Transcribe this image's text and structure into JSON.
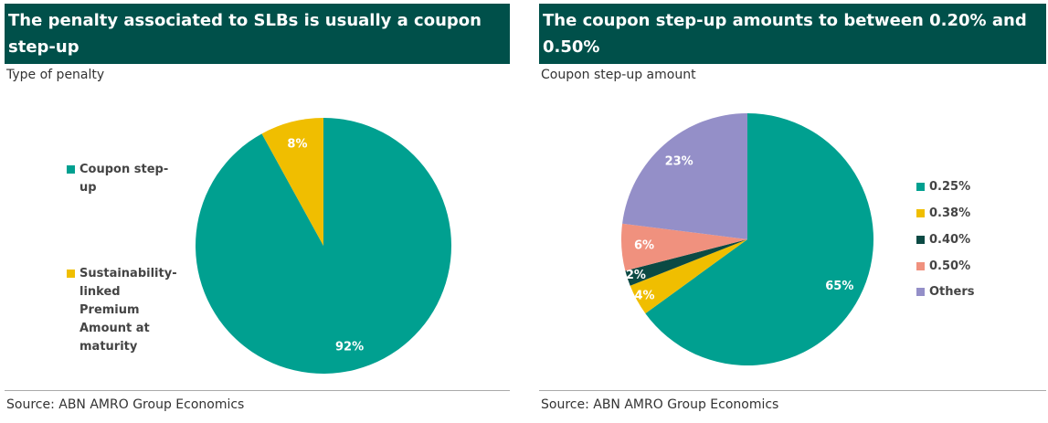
{
  "chart_data": [
    {
      "type": "pie",
      "title": "The penalty associated to SLBs is usually a coupon step-up",
      "subtitle": "Type of penalty",
      "categories": [
        "Coupon step-up",
        "Sustainability-linked Premium Amount at maturity"
      ],
      "values": [
        92,
        8
      ],
      "value_labels": [
        "92%",
        "8%"
      ],
      "colors": [
        "#00a090",
        "#f0be00"
      ],
      "source": "Source: ABN AMRO Group Economics"
    },
    {
      "type": "pie",
      "title": "The coupon step-up amounts to between 0.20% and 0.50%",
      "subtitle": "Coupon step-up amount",
      "categories": [
        "0.25%",
        "0.38%",
        "0.40%",
        "0.50%",
        "Others"
      ],
      "values": [
        65,
        4,
        2,
        6,
        23
      ],
      "value_labels": [
        "65%",
        "4%",
        "2%",
        "6%",
        "23%"
      ],
      "colors": [
        "#00a090",
        "#f0be00",
        "#0b4a44",
        "#f0917e",
        "#948fc8"
      ],
      "source": "Source: ABN AMRO Group Economics"
    }
  ]
}
